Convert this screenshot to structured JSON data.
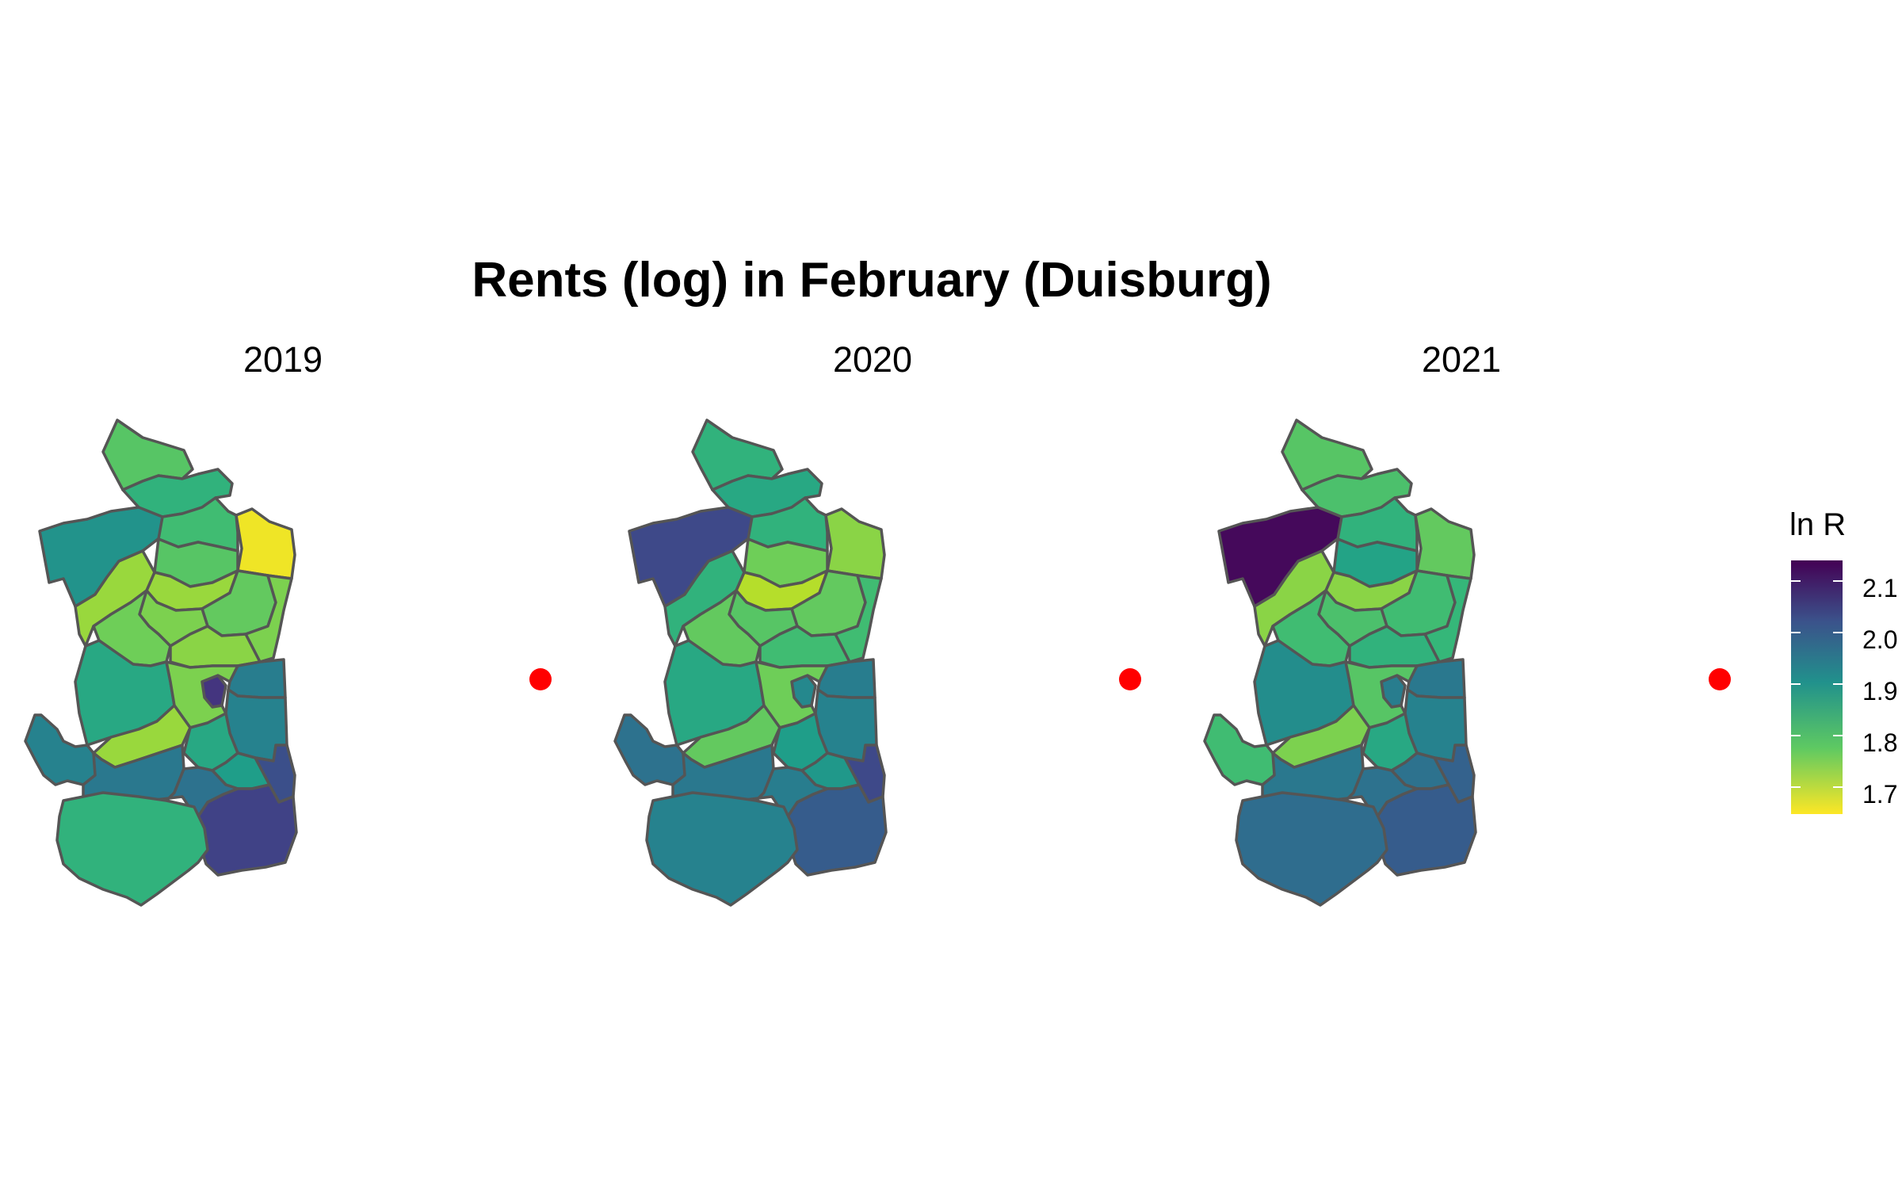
{
  "title": "Rents (log) in February (Duisburg)",
  "panels": [
    {
      "label": "2019",
      "districts": {
        "north": 1.82,
        "nw": 1.92,
        "nne": 1.86,
        "ne": 1.71,
        "cw": 1.82,
        "cmid": 1.77,
        "c3": 1.81,
        "cbe": 1.79,
        "cse": 1.78,
        "cne": 1.84,
        "w": 1.77,
        "cc": 1.8,
        "c2": 1.79,
        "wsw": 1.88,
        "smid": 1.79,
        "e1": 1.96,
        "e2": 1.95,
        "r1": 1.97,
        "r2": 1.98,
        "dark_small": 2.08,
        "far_w": 1.95,
        "sw": 1.77,
        "s1": 1.88,
        "s2": 1.9,
        "se": 2.04,
        "se2": 2.06,
        "south": 1.86
      }
    },
    {
      "label": "2020",
      "districts": {
        "north": 1.86,
        "nw": 2.05,
        "nne": 1.88,
        "ne": 1.78,
        "cw": 1.8,
        "cmid": 1.75,
        "c3": 1.81,
        "cbe": 1.84,
        "cse": 1.84,
        "cne": 1.86,
        "w": 1.86,
        "cc": 1.81,
        "c2": 1.82,
        "wsw": 1.88,
        "smid": 1.8,
        "e1": 1.96,
        "e2": 1.95,
        "r1": 1.97,
        "r2": 1.96,
        "dark_small": 1.94,
        "far_w": 1.98,
        "sw": 1.81,
        "s1": 1.9,
        "s2": 1.91,
        "se": 2.05,
        "se2": 2.02,
        "south": 1.95
      }
    },
    {
      "label": "2021",
      "districts": {
        "north": 1.82,
        "nw": 2.14,
        "nne": 1.83,
        "ne": 1.81,
        "cw": 1.89,
        "cmid": 1.78,
        "c3": 1.84,
        "cbe": 1.85,
        "cse": 1.86,
        "cne": 1.86,
        "w": 1.78,
        "cc": 1.84,
        "c2": 1.83,
        "wsw": 1.93,
        "smid": 1.82,
        "e1": 1.97,
        "e2": 1.95,
        "r1": 1.97,
        "r2": 1.98,
        "dark_small": 1.96,
        "far_w": 1.84,
        "sw": 1.79,
        "s1": 1.88,
        "s2": 1.98,
        "se": 2.01,
        "se2": 2.02,
        "south": 1.99
      }
    }
  ],
  "legend": {
    "title": "ln R",
    "ticks": [
      "2.1",
      "2.0",
      "1.9",
      "1.8",
      "1.7"
    ],
    "tick_values": [
      2.1,
      2.0,
      1.9,
      1.8,
      1.7
    ],
    "range": [
      1.7,
      2.15
    ]
  },
  "colors": {
    "border": "#555555",
    "marker": "#ff0000",
    "viridis": [
      "#440154",
      "#482878",
      "#3e4989",
      "#31688e",
      "#26828e",
      "#1f9e89",
      "#35b779",
      "#6ece58",
      "#b5de2b",
      "#fde725"
    ]
  }
}
